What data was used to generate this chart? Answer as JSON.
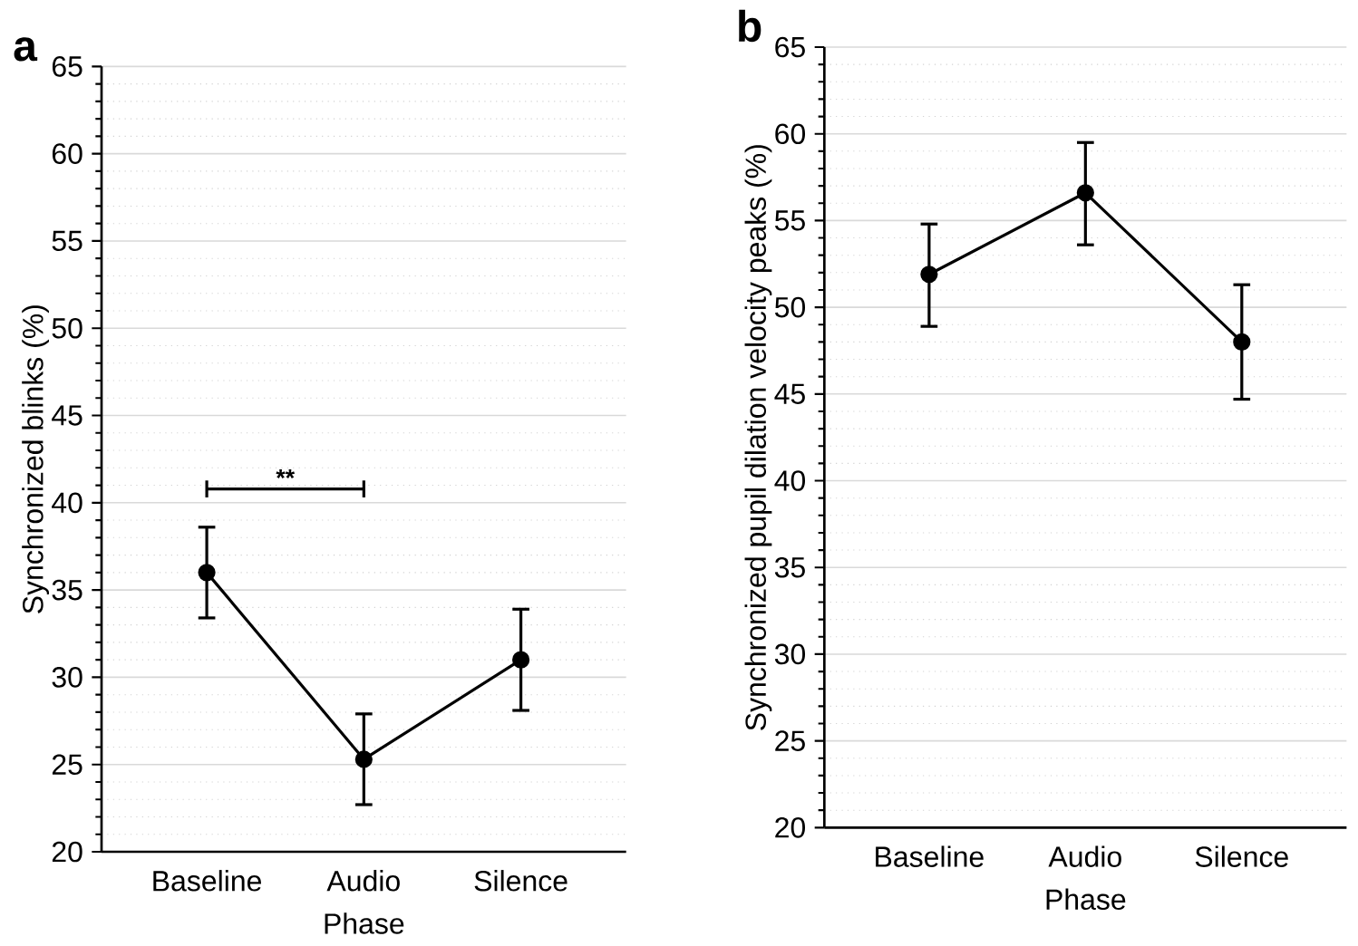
{
  "chart_data": [
    {
      "type": "line",
      "title": "a",
      "xlabel": "Phase",
      "ylabel": "Synchronized blinks (%)",
      "categories": [
        "Baseline",
        "Audio",
        "Silence"
      ],
      "series": [
        {
          "color": "#000000",
          "values": [
            36.0,
            25.3,
            31.0
          ],
          "errors": [
            [
              33.4,
              38.6
            ],
            [
              22.7,
              27.9
            ],
            [
              28.1,
              33.9
            ]
          ]
        }
      ],
      "ylim": [
        20,
        65
      ],
      "yticks": [
        20,
        25,
        30,
        35,
        40,
        45,
        50,
        55,
        60,
        65
      ],
      "grid": "y",
      "marker": "circle",
      "line_style": "solid",
      "annotations": [
        "**"
      ]
    },
    {
      "type": "line",
      "title": "b",
      "xlabel": "Phase",
      "ylabel": "Synchronized pupil dilation velocity peaks (%)",
      "categories": [
        "Baseline",
        "Audio",
        "Silence"
      ],
      "series": [
        {
          "color": "#000000",
          "values": [
            51.9,
            56.6,
            48.0
          ],
          "errors": [
            [
              48.9,
              54.8
            ],
            [
              53.6,
              59.5
            ],
            [
              44.7,
              51.3
            ]
          ]
        }
      ],
      "ylim": [
        20,
        65
      ],
      "yticks": [
        20,
        25,
        30,
        35,
        40,
        45,
        50,
        55,
        60,
        65
      ],
      "grid": "y",
      "marker": "circle",
      "line_style": "solid"
    }
  ]
}
